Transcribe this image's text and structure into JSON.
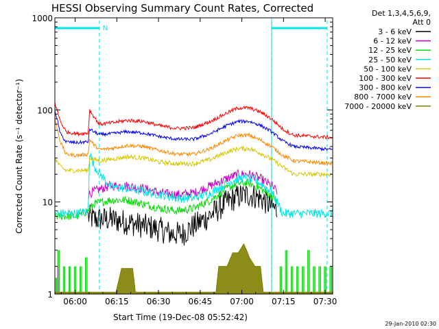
{
  "chart_data": {
    "type": "line",
    "title": "HESSI Observing Summary Count Rates, Corrected",
    "xlabel": "Start Time (19-Dec-08 05:52:42)",
    "ylabel": "Corrected Count Rate (s⁻¹ detector⁻¹)",
    "y_scale": "log",
    "ylim": [
      1,
      1000
    ],
    "xlim_minutes_from_start": [
      0,
      100
    ],
    "x_ticks": [
      {
        "label": "06:00",
        "minute": 7.3
      },
      {
        "label": "06:15",
        "minute": 22.3
      },
      {
        "label": "06:30",
        "minute": 37.3
      },
      {
        "label": "06:45",
        "minute": 52.3
      },
      {
        "label": "07:00",
        "minute": 67.3
      },
      {
        "label": "07:15",
        "minute": 82.3
      },
      {
        "label": "07:30",
        "minute": 97.3
      }
    ],
    "y_ticks": [
      {
        "label": "1",
        "value": 1
      },
      {
        "label": "10",
        "value": 10
      },
      {
        "label": "100",
        "value": 100
      },
      {
        "label": "1000",
        "value": 1000
      }
    ],
    "legend_header": [
      "Det 1,3,4,5,6,9,",
      "Att 0"
    ],
    "legend_position": "right",
    "night_flag_label": "N",
    "night_bars": [
      [
        0,
        16
      ],
      [
        78,
        98
      ]
    ],
    "night_markers": [
      16,
      78,
      98
    ],
    "footer": "29-Jan-2010 02:30",
    "series": [
      {
        "name": "3 - 6 keV",
        "color": "#000000",
        "points": [
          [
            12,
            7
          ],
          [
            14,
            6.5
          ],
          [
            20,
            6.5
          ],
          [
            26,
            6
          ],
          [
            32,
            5.5
          ],
          [
            38,
            5
          ],
          [
            42,
            4.5
          ],
          [
            46,
            4.5
          ],
          [
            50,
            5.5
          ],
          [
            54,
            6.5
          ],
          [
            58,
            8
          ],
          [
            62,
            10
          ],
          [
            66,
            11.5
          ],
          [
            70,
            12
          ],
          [
            74,
            11
          ],
          [
            78,
            9
          ],
          [
            80,
            8
          ]
        ]
      },
      {
        "name": "6 - 12 keV",
        "color": "#cc00cc",
        "points": [
          [
            12,
            12
          ],
          [
            14,
            13
          ],
          [
            20,
            15
          ],
          [
            26,
            15
          ],
          [
            32,
            14
          ],
          [
            38,
            12.5
          ],
          [
            44,
            12
          ],
          [
            50,
            12.5
          ],
          [
            56,
            15
          ],
          [
            62,
            18
          ],
          [
            66,
            20
          ],
          [
            70,
            20
          ],
          [
            74,
            18
          ],
          [
            78,
            15
          ],
          [
            80,
            13
          ]
        ]
      },
      {
        "name": "12 - 25 keV",
        "color": "#00dd00",
        "points": [
          [
            0,
            7
          ],
          [
            4,
            7
          ],
          [
            8,
            7
          ],
          [
            12,
            8
          ],
          [
            14,
            9.5
          ],
          [
            20,
            10.5
          ],
          [
            26,
            10.5
          ],
          [
            32,
            9.5
          ],
          [
            38,
            8.5
          ],
          [
            44,
            8
          ],
          [
            50,
            8.5
          ],
          [
            56,
            10.5
          ],
          [
            62,
            14
          ],
          [
            66,
            16
          ],
          [
            70,
            16
          ],
          [
            74,
            14
          ],
          [
            78,
            11.5
          ],
          [
            80,
            10
          ]
        ]
      },
      {
        "name": "25 - 50 keV",
        "color": "#00e5e5",
        "points": [
          [
            0,
            7.5
          ],
          [
            8,
            7.5
          ],
          [
            12,
            8
          ],
          [
            12.5,
            35
          ],
          [
            14,
            25
          ],
          [
            20,
            14.5
          ],
          [
            26,
            14
          ],
          [
            32,
            13
          ],
          [
            38,
            12
          ],
          [
            44,
            11
          ],
          [
            50,
            11
          ],
          [
            56,
            12.5
          ],
          [
            62,
            16
          ],
          [
            66,
            18
          ],
          [
            70,
            18
          ],
          [
            74,
            16
          ],
          [
            78,
            13
          ],
          [
            80,
            10
          ],
          [
            82,
            7.5
          ],
          [
            100,
            7.5
          ]
        ]
      },
      {
        "name": "50 - 100 keV",
        "color": "#d4c800",
        "points": [
          [
            0,
            30
          ],
          [
            2,
            24
          ],
          [
            4,
            22
          ],
          [
            8,
            22
          ],
          [
            12,
            22
          ],
          [
            12.5,
            30
          ],
          [
            16,
            28
          ],
          [
            20,
            29
          ],
          [
            26,
            31
          ],
          [
            32,
            30
          ],
          [
            38,
            27
          ],
          [
            44,
            26
          ],
          [
            50,
            26
          ],
          [
            56,
            29
          ],
          [
            62,
            35
          ],
          [
            66,
            38
          ],
          [
            70,
            38
          ],
          [
            74,
            34
          ],
          [
            78,
            29
          ],
          [
            82,
            24
          ],
          [
            86,
            20
          ],
          [
            100,
            20
          ]
        ]
      },
      {
        "name": "100 - 300 keV",
        "color": "#ff0000",
        "points": [
          [
            0,
            120
          ],
          [
            2,
            75
          ],
          [
            4,
            58
          ],
          [
            8,
            55
          ],
          [
            12,
            56
          ],
          [
            12.5,
            100
          ],
          [
            14,
            85
          ],
          [
            16,
            70
          ],
          [
            20,
            72
          ],
          [
            26,
            77
          ],
          [
            32,
            75
          ],
          [
            38,
            67
          ],
          [
            44,
            63
          ],
          [
            50,
            64
          ],
          [
            56,
            75
          ],
          [
            62,
            93
          ],
          [
            66,
            105
          ],
          [
            70,
            105
          ],
          [
            74,
            95
          ],
          [
            78,
            80
          ],
          [
            82,
            62
          ],
          [
            86,
            53
          ],
          [
            100,
            50
          ]
        ]
      },
      {
        "name": "300 - 800 keV",
        "color": "#0000ff",
        "points": [
          [
            0,
            100
          ],
          [
            2,
            55
          ],
          [
            4,
            45
          ],
          [
            8,
            44
          ],
          [
            12,
            45
          ],
          [
            12.5,
            62
          ],
          [
            14,
            58
          ],
          [
            16,
            54
          ],
          [
            20,
            55
          ],
          [
            26,
            58
          ],
          [
            32,
            56
          ],
          [
            38,
            51
          ],
          [
            44,
            48
          ],
          [
            50,
            48
          ],
          [
            56,
            55
          ],
          [
            62,
            68
          ],
          [
            66,
            75
          ],
          [
            70,
            75
          ],
          [
            74,
            68
          ],
          [
            78,
            58
          ],
          [
            82,
            46
          ],
          [
            86,
            40
          ],
          [
            100,
            37
          ]
        ]
      },
      {
        "name": "800 - 7000 keV",
        "color": "#ff8800",
        "points": [
          [
            0,
            80
          ],
          [
            2,
            45
          ],
          [
            4,
            33
          ],
          [
            8,
            32
          ],
          [
            12,
            33
          ],
          [
            12.5,
            48
          ],
          [
            14,
            42
          ],
          [
            16,
            37
          ],
          [
            20,
            38
          ],
          [
            26,
            41
          ],
          [
            32,
            40
          ],
          [
            38,
            36
          ],
          [
            44,
            33
          ],
          [
            50,
            33
          ],
          [
            56,
            38
          ],
          [
            62,
            47
          ],
          [
            66,
            53
          ],
          [
            70,
            53
          ],
          [
            74,
            47
          ],
          [
            78,
            40
          ],
          [
            82,
            32
          ],
          [
            86,
            28
          ],
          [
            100,
            26
          ]
        ]
      },
      {
        "name": "7000 - 20000 keV",
        "color": "#808000",
        "points": [
          [
            0,
            1.05
          ],
          [
            10,
            1.05
          ],
          [
            22,
            1.05
          ],
          [
            24,
            1.9
          ],
          [
            28,
            1.9
          ],
          [
            29,
            1.05
          ],
          [
            58,
            1.05
          ],
          [
            59,
            2
          ],
          [
            62,
            2
          ],
          [
            64,
            2.8
          ],
          [
            66,
            2.8
          ],
          [
            68,
            3.5
          ],
          [
            69,
            3
          ],
          [
            70,
            2.5
          ],
          [
            72,
            2
          ],
          [
            74,
            2
          ],
          [
            75,
            1.05
          ],
          [
            100,
            1.05
          ]
        ]
      }
    ],
    "green_spikes": [
      [
        0,
        1.5
      ],
      [
        1,
        3
      ],
      [
        2,
        1
      ],
      [
        3,
        2
      ],
      [
        4,
        1
      ],
      [
        5,
        2
      ],
      [
        6,
        1
      ],
      [
        7,
        2
      ],
      [
        8,
        1
      ],
      [
        9,
        2
      ],
      [
        10,
        1
      ],
      [
        11,
        2.5
      ],
      [
        12,
        1
      ],
      [
        80,
        1
      ],
      [
        81,
        2
      ],
      [
        82,
        1
      ],
      [
        83,
        3
      ],
      [
        84,
        1
      ],
      [
        85,
        2
      ],
      [
        86,
        1
      ],
      [
        87,
        2
      ],
      [
        88,
        1
      ],
      [
        89,
        2
      ],
      [
        90,
        1
      ],
      [
        91,
        3
      ],
      [
        92,
        1
      ],
      [
        93,
        2
      ],
      [
        94,
        1
      ],
      [
        95,
        2
      ],
      [
        96,
        1
      ],
      [
        97,
        2
      ],
      [
        98,
        1
      ],
      [
        99,
        2
      ],
      [
        100,
        1
      ]
    ],
    "magenta_low": [
      [
        0,
        1.5
      ],
      [
        1,
        2
      ],
      [
        2,
        1
      ],
      [
        12,
        1
      ]
    ]
  }
}
